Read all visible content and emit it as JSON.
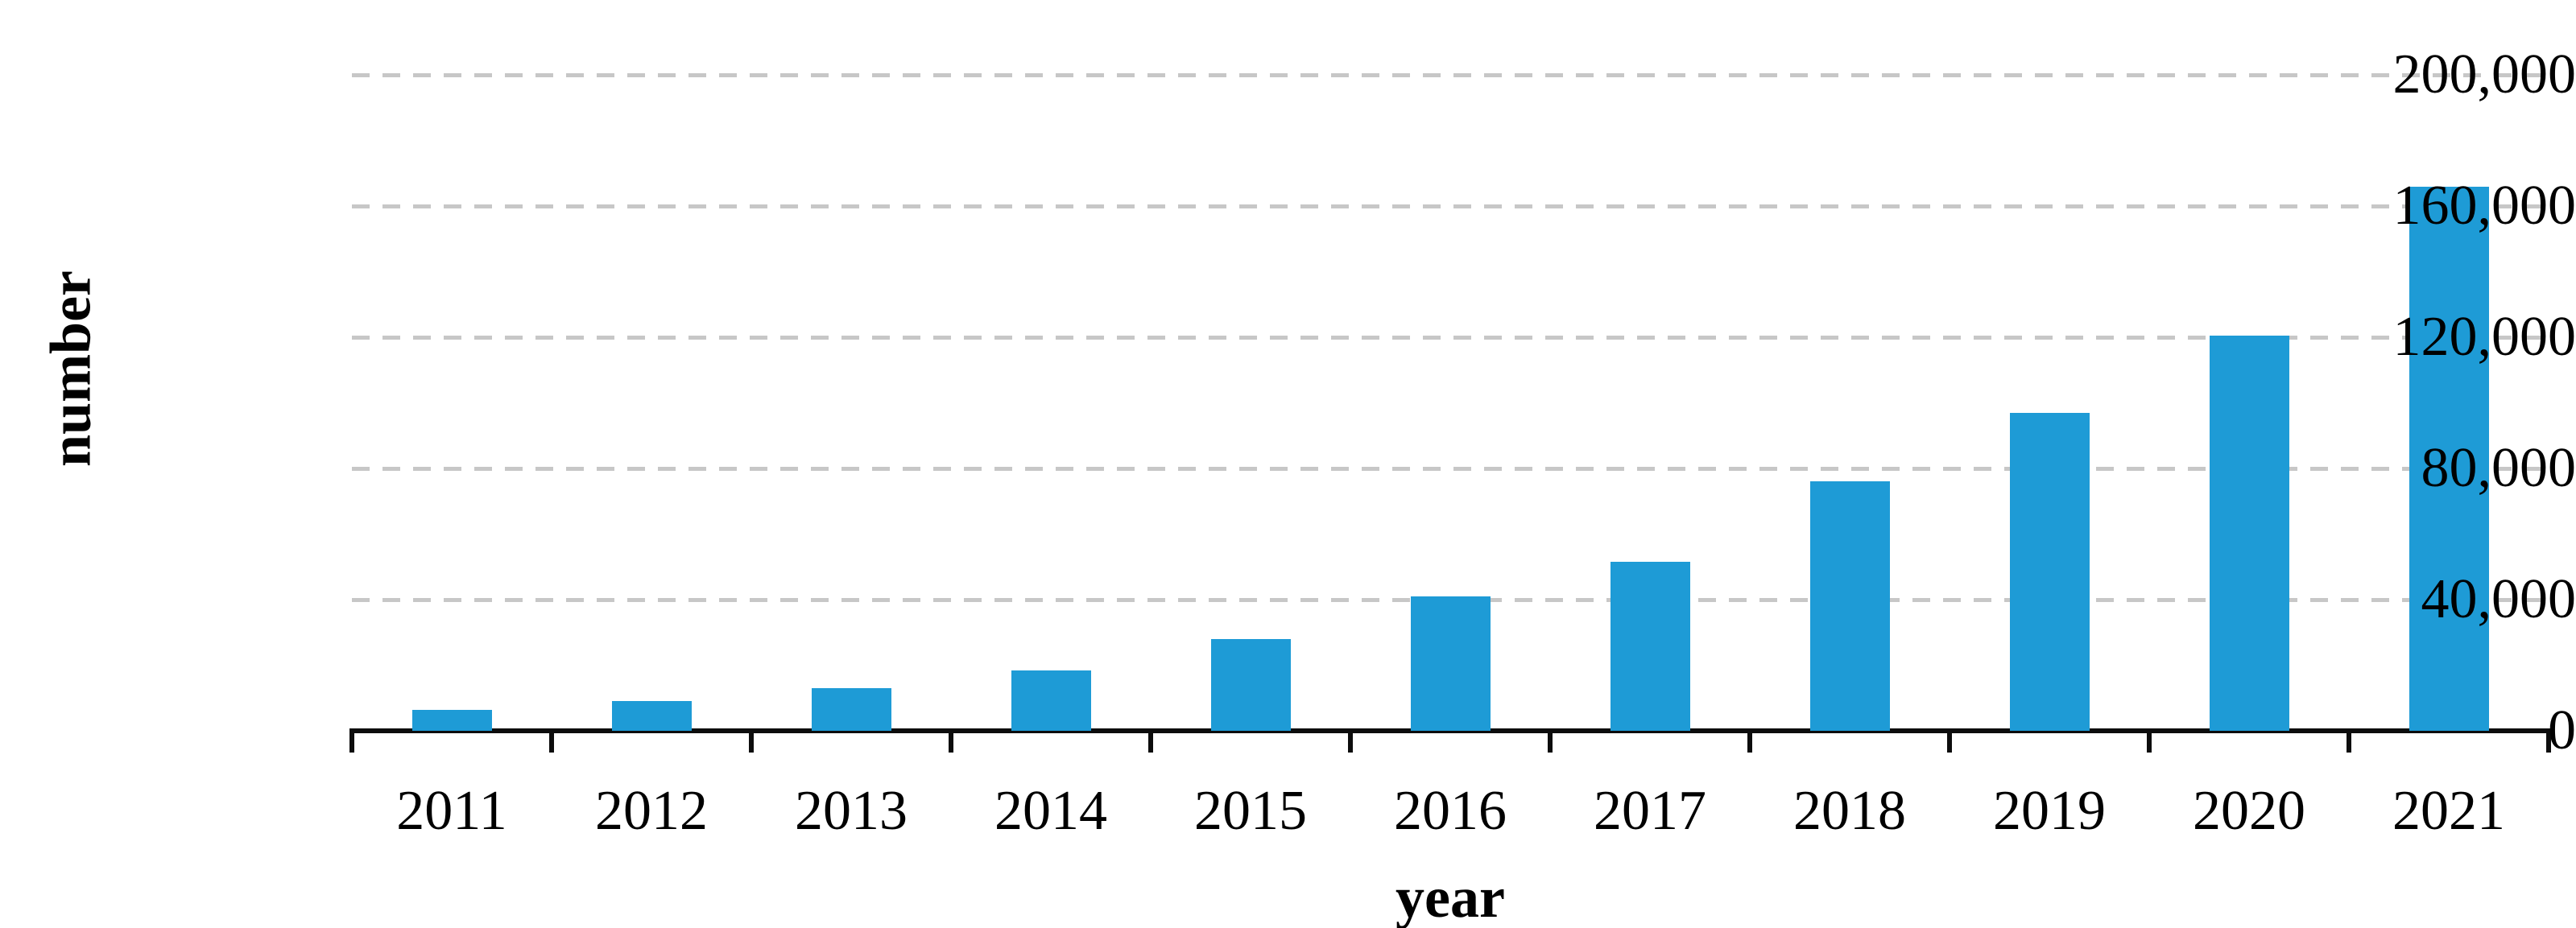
{
  "chart_data": {
    "type": "bar",
    "title": "",
    "xlabel": "year",
    "ylabel": "number",
    "categories": [
      "2011",
      "2012",
      "2013",
      "2014",
      "2015",
      "2016",
      "2017",
      "2018",
      "2019",
      "2020",
      "2021"
    ],
    "values": [
      6500,
      9000,
      13000,
      18500,
      28000,
      41000,
      51500,
      76000,
      97000,
      120500,
      166000
    ],
    "ylim": [
      0,
      200000
    ],
    "yticks": [
      0,
      40000,
      80000,
      120000,
      160000,
      200000
    ],
    "ytick_labels": [
      "0",
      "40,000",
      "80,000",
      "120,000",
      "160,000",
      "200,000"
    ],
    "grid": "horizontal-dashed",
    "legend": "none",
    "colors": {
      "bar": "#1e9bd6",
      "gridline": "#c7c7c7",
      "axis": "#0d0d0d",
      "text": "#000000"
    }
  }
}
